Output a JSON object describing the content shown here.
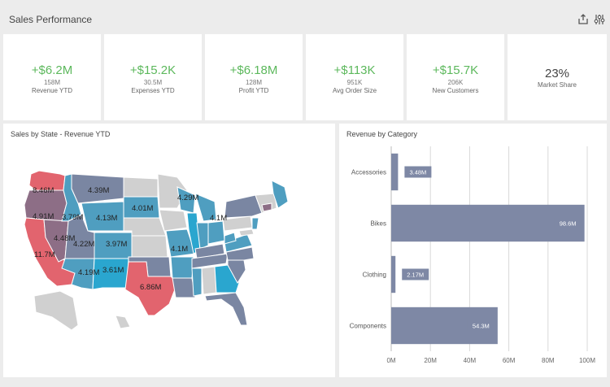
{
  "header": {
    "title": "Sales Performance"
  },
  "kpis": [
    {
      "value": "+$6.2M",
      "sub": "158M",
      "label": "Revenue YTD"
    },
    {
      "value": "+$15.2K",
      "sub": "30.5M",
      "label": "Expenses YTD"
    },
    {
      "value": "+$6.18M",
      "sub": "128M",
      "label": "Profit YTD"
    },
    {
      "value": "+$113K",
      "sub": "951K",
      "label": "Avg Order Size"
    },
    {
      "value": "+$15.7K",
      "sub": "206K",
      "label": "New Customers"
    },
    {
      "value": "23%",
      "label": "Market Share"
    }
  ],
  "map": {
    "title": "Sales by State - Revenue YTD",
    "labels": [
      "8.46M",
      "4.39M",
      "4.29M",
      "4.91M",
      "3.79M",
      "4.13M",
      "4.01M",
      "4.1M",
      "4.48M",
      "4.22M",
      "3.97M",
      "4.1M",
      "11.7M",
      "4.19M",
      "3.61M",
      "6.86M"
    ],
    "colors": {
      "high": "#e2646e",
      "mid": "#8d6e86",
      "blue": "#4f9ec0",
      "cyan": "#2aa6cf",
      "slate": "#7a86a2",
      "gray": "#d0d0d0"
    }
  },
  "chart_data": {
    "type": "bar",
    "orientation": "horizontal",
    "title": "Revenue by Category",
    "categories": [
      "Accessories",
      "Bikes",
      "Clothing",
      "Components"
    ],
    "values": [
      3.48,
      98.6,
      2.17,
      54.3
    ],
    "data_labels": [
      "3.48M",
      "98.6M",
      "2.17M",
      "54.3M"
    ],
    "x_ticks": [
      "0M",
      "20M",
      "40M",
      "60M",
      "80M",
      "100M"
    ],
    "xlim": [
      0,
      100
    ],
    "grid": true,
    "bar_color": "#7e88a5"
  }
}
